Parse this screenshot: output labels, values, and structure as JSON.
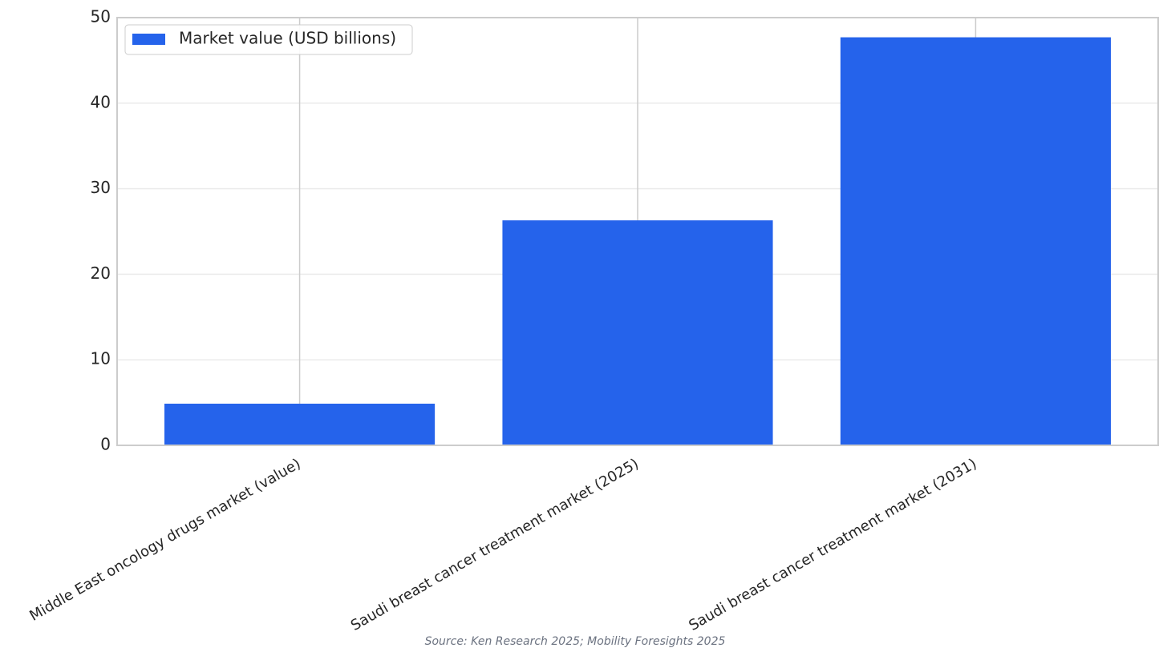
{
  "chart_data": {
    "type": "bar",
    "categories": [
      "Middle East oncology drugs market (value)",
      "Saudi breast cancer treatment market (2025)",
      "Saudi breast cancer treatment market (2031)"
    ],
    "series": [
      {
        "name": "Market value (USD billions)",
        "color": "#2563eb",
        "values": [
          4.87,
          26.3,
          47.7
        ]
      }
    ],
    "ylim": [
      0,
      50
    ],
    "yticks": [
      0,
      10,
      20,
      30,
      40,
      50
    ],
    "grid": true,
    "legend": "upper left",
    "source": "Source: Ken Research 2025; Mobility Foresights 2025"
  }
}
